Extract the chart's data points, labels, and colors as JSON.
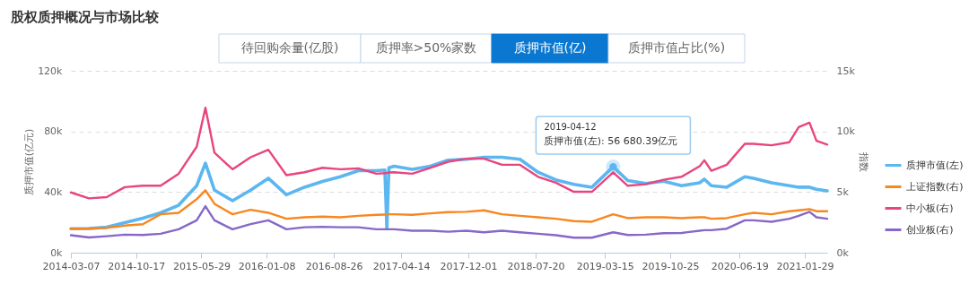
{
  "chart_data": {
    "type": "line",
    "title": "股权质押概况与市场比较",
    "ylabel": "质押市值(亿元)",
    "y2label": "指数",
    "x": [
      "2014-03-07",
      "2014-05-08",
      "2014-07-08",
      "2014-09-08",
      "2014-11-09",
      "2015-01-09",
      "2015-03-12",
      "2015-05-13",
      "2015-06-12",
      "2015-07-13",
      "2015-09-13",
      "2015-11-14",
      "2016-01-14",
      "2016-03-16",
      "2016-05-17",
      "2016-07-18",
      "2016-09-17",
      "2016-11-18",
      "2017-01-19",
      "2017-02-17",
      "2017-02-24",
      "2017-03-03",
      "2017-03-21",
      "2017-05-22",
      "2017-07-23",
      "2017-09-22",
      "2017-11-23",
      "2018-01-24",
      "2018-03-26",
      "2018-05-27",
      "2018-07-28",
      "2018-09-27",
      "2018-11-28",
      "2019-01-29",
      "2019-04-12",
      "2019-06-01",
      "2019-08-02",
      "2019-10-02",
      "2019-12-03",
      "2020-02-03",
      "2020-02-19",
      "2020-03-14",
      "2020-05-06",
      "2020-07-07",
      "2020-08-06",
      "2020-10-07",
      "2020-12-07",
      "2021-01-08",
      "2021-02-14",
      "2021-03-10",
      "2021-04-16"
    ],
    "series": [
      {
        "name": "质押市值(左)",
        "color": "#5cb6f0",
        "values": [
          15800,
          16000,
          16800,
          19800,
          22800,
          26300,
          31300,
          44200,
          59000,
          41200,
          34300,
          41200,
          49100,
          38200,
          43200,
          47000,
          50100,
          54100,
          54100,
          54500,
          15800,
          56000,
          57000,
          55000,
          57000,
          61000,
          61600,
          63000,
          63000,
          61600,
          53100,
          48100,
          45100,
          43200,
          56680.39,
          47600,
          45700,
          47100,
          44200,
          46100,
          48500,
          44200,
          43200,
          50100,
          49100,
          46100,
          44200,
          43200,
          43200,
          41800,
          40800
        ]
      },
      {
        "name": "上证指数(右)",
        "color": "#f7871f",
        "axis": "y2",
        "values": [
          1980,
          1980,
          2050,
          2230,
          2350,
          3170,
          3290,
          4410,
          5150,
          4030,
          3170,
          3540,
          3290,
          2800,
          2920,
          2970,
          2920,
          3040,
          3120,
          3140,
          3140,
          3170,
          3170,
          3120,
          3240,
          3340,
          3370,
          3490,
          3170,
          3040,
          2920,
          2800,
          2600,
          2550,
          3170,
          2850,
          2920,
          2920,
          2850,
          2920,
          2920,
          2800,
          2850,
          3170,
          3290,
          3170,
          3420,
          3490,
          3590,
          3420,
          3420
        ]
      },
      {
        "name": "中小板(右)",
        "color": "#e8457f",
        "axis": "y2",
        "values": [
          4970,
          4480,
          4580,
          5400,
          5520,
          5520,
          6510,
          8740,
          11950,
          8240,
          6880,
          7870,
          8490,
          6390,
          6630,
          7000,
          6880,
          6950,
          6510,
          6560,
          6580,
          6610,
          6630,
          6510,
          7000,
          7500,
          7750,
          7750,
          7250,
          7250,
          6260,
          5770,
          5020,
          5020,
          6630,
          5520,
          5640,
          6010,
          6260,
          7130,
          7620,
          6760,
          7250,
          8980,
          8980,
          8860,
          9110,
          10350,
          10720,
          9230,
          8910
        ]
      },
      {
        "name": "创业板(右)",
        "color": "#8767c8",
        "axis": "y2",
        "values": [
          1440,
          1260,
          1360,
          1490,
          1460,
          1560,
          1930,
          2670,
          3840,
          2670,
          1930,
          2350,
          2670,
          1930,
          2100,
          2130,
          2100,
          2100,
          1930,
          1930,
          1930,
          1930,
          1930,
          1810,
          1810,
          1730,
          1810,
          1680,
          1810,
          1680,
          1560,
          1440,
          1240,
          1240,
          1680,
          1460,
          1490,
          1610,
          1630,
          1810,
          1860,
          1860,
          1980,
          2670,
          2670,
          2550,
          2800,
          3040,
          3370,
          2920,
          2800
        ]
      }
    ],
    "xlim": [
      "2014-03-07",
      "2021-04-16"
    ],
    "xticks": [
      "2014-03-07",
      "2014-10-17",
      "2015-05-29",
      "2016-01-08",
      "2016-08-26",
      "2017-04-14",
      "2017-12-01",
      "2018-07-20",
      "2019-03-15",
      "2019-10-25",
      "2020-06-19",
      "2021-01-29"
    ],
    "ylim": [
      0,
      120000
    ],
    "yticks": [
      {
        "value": 0,
        "label": "0k"
      },
      {
        "value": 40000,
        "label": "40k"
      },
      {
        "value": 80000,
        "label": "80k"
      },
      {
        "value": 120000,
        "label": "120k"
      }
    ],
    "y2lim": [
      0,
      15000
    ],
    "y2ticks": [
      {
        "value": 0,
        "label": "0k"
      },
      {
        "value": 5000,
        "label": "5k"
      },
      {
        "value": 10000,
        "label": "10k"
      },
      {
        "value": 15000,
        "label": "15k"
      }
    ],
    "grid": "y",
    "legend": "right",
    "marker": "none",
    "line_style": "solid",
    "annotations": [
      "待回购余量(亿股)",
      "质押率>50%家数",
      "质押市值(亿)",
      "质押市值占比(%)",
      {
        "text": "质押市值(左): 56 680.39亿元",
        "x": "2019-04-12",
        "y": 56680.39
      },
      "2019-04-12"
    ]
  }
}
